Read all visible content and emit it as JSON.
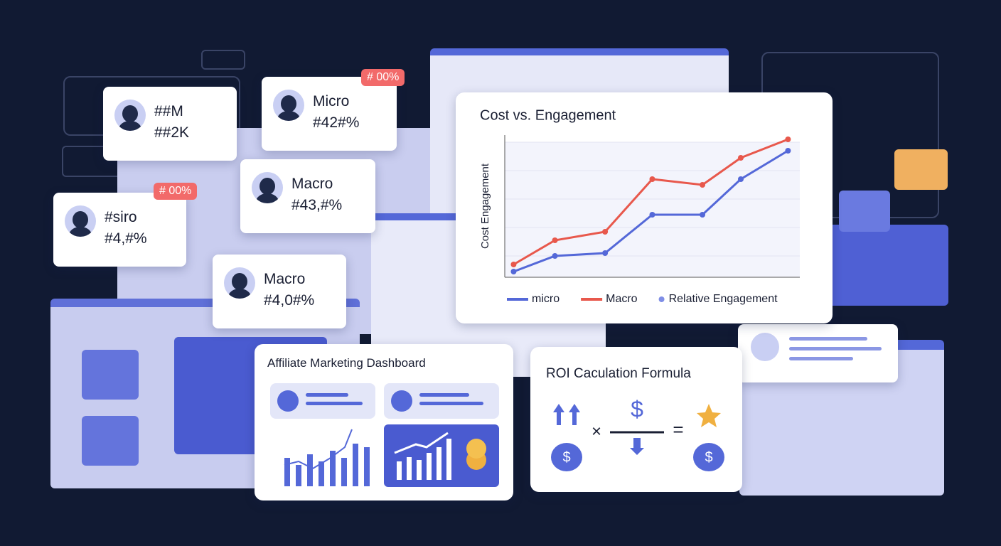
{
  "cards": [
    {
      "title": "##M",
      "value": "##2K"
    },
    {
      "title": "Micro",
      "value": "#42#%"
    },
    {
      "title": "#siro",
      "value": "#4,#%"
    },
    {
      "title": "Macro",
      "value": "#43,#%"
    },
    {
      "title": "Macro",
      "value": "#4,0#%"
    }
  ],
  "badges": [
    "# 00%",
    "# 00%"
  ],
  "chart_data": {
    "type": "line",
    "title": "Cost vs. Engagement",
    "y_label": "Cost Engagement",
    "x": [
      3,
      17,
      34,
      50,
      67,
      80,
      96
    ],
    "xlim": [
      0,
      100
    ],
    "ylim": [
      0,
      100
    ],
    "series": [
      {
        "name": "micro",
        "color": "#5468d8",
        "values": [
          4,
          15,
          17,
          44,
          44,
          69,
          89
        ]
      },
      {
        "name": "Macro",
        "color": "#e8584c",
        "values": [
          9,
          26,
          32,
          69,
          65,
          84,
          97
        ]
      }
    ],
    "legend_extra": {
      "name": "Relative Engagement",
      "color": "#7f8ee6"
    }
  },
  "dashboard": {
    "title": "Affiliate Marketing Dashboard"
  },
  "formula": {
    "title": "ROI Caculation Formula"
  }
}
